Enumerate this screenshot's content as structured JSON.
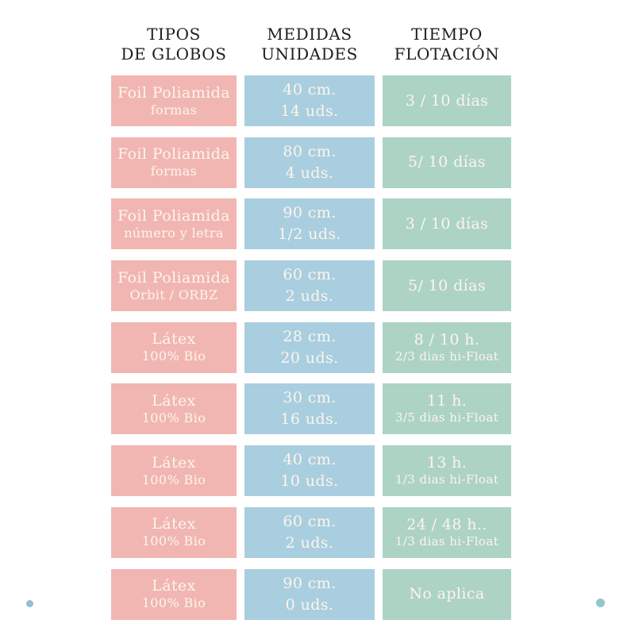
{
  "colors": {
    "type": "#f1b6b2",
    "measure": "#a9cee0",
    "float": "#add3c5",
    "cell_text": "#fcf5eb",
    "header_text": "#1d1d1d",
    "dot_left": "#96bed8",
    "dot_right": "#90c7ca"
  },
  "headers": [
    {
      "line1": "TIPOS",
      "line2": "DE GLOBOS"
    },
    {
      "line1": "MEDIDAS",
      "line2": "UNIDADES"
    },
    {
      "line1": "TIEMPO",
      "line2": "FLOTACIÓN"
    }
  ],
  "rows": [
    {
      "type": {
        "l1": "Foil Poliamida",
        "l2": "formas"
      },
      "measure": {
        "l1": "40 cm.",
        "l2": "14 uds."
      },
      "float": {
        "l1": "3 / 10 días",
        "l2": ""
      }
    },
    {
      "type": {
        "l1": "Foil Poliamida",
        "l2": "formas"
      },
      "measure": {
        "l1": "80 cm.",
        "l2": "4 uds."
      },
      "float": {
        "l1": "5/ 10 días",
        "l2": ""
      }
    },
    {
      "type": {
        "l1": "Foil Poliamida",
        "l2": "número y letra"
      },
      "measure": {
        "l1": "90 cm.",
        "l2": "1/2 uds."
      },
      "float": {
        "l1": "3 / 10 días",
        "l2": ""
      }
    },
    {
      "type": {
        "l1": "Foil Poliamida",
        "l2": "Orbit / ORBZ"
      },
      "measure": {
        "l1": "60 cm.",
        "l2": "2 uds."
      },
      "float": {
        "l1": "5/ 10 días",
        "l2": ""
      }
    },
    {
      "type": {
        "l1": "Látex",
        "l2": "100% Bio"
      },
      "measure": {
        "l1": "28 cm.",
        "l2": "20 uds."
      },
      "float": {
        "l1": "8 / 10 h.",
        "l2": "2/3 dias hi-Float"
      }
    },
    {
      "type": {
        "l1": "Látex",
        "l2": "100% Bio"
      },
      "measure": {
        "l1": "30 cm.",
        "l2": "16 uds."
      },
      "float": {
        "l1": "11 h.",
        "l2": "3/5 dias hi-Float"
      }
    },
    {
      "type": {
        "l1": "Látex",
        "l2": "100% Bio"
      },
      "measure": {
        "l1": "40 cm.",
        "l2": "10 uds."
      },
      "float": {
        "l1": "13 h.",
        "l2": "1/3 dias hi-Float"
      }
    },
    {
      "type": {
        "l1": "Látex",
        "l2": "100% Bio"
      },
      "measure": {
        "l1": "60 cm.",
        "l2": "2 uds."
      },
      "float": {
        "l1": "24 / 48 h..",
        "l2": "1/3 dias hi-Float"
      }
    },
    {
      "type": {
        "l1": "Látex",
        "l2": "100% Bio"
      },
      "measure": {
        "l1": "90 cm.",
        "l2": "0 uds."
      },
      "float": {
        "l1": "No aplica",
        "l2": ""
      }
    }
  ],
  "chart_data": {
    "type": "table",
    "title": "",
    "columns": [
      "TIPOS DE GLOBOS",
      "MEDIDAS UNIDADES",
      "TIEMPO FLOTACIÓN"
    ],
    "rows": [
      [
        "Foil Poliamida formas",
        "40 cm. 14 uds.",
        "3 / 10 días"
      ],
      [
        "Foil Poliamida formas",
        "80 cm. 4 uds.",
        "5/ 10 días"
      ],
      [
        "Foil Poliamida número y letra",
        "90 cm. 1/2 uds.",
        "3 / 10 días"
      ],
      [
        "Foil Poliamida Orbit / ORBZ",
        "60 cm. 2 uds.",
        "5/ 10 días"
      ],
      [
        "Látex 100% Bio",
        "28 cm. 20 uds.",
        "8 / 10 h. 2/3 dias hi-Float"
      ],
      [
        "Látex 100% Bio",
        "30 cm. 16 uds.",
        "11 h. 3/5 dias hi-Float"
      ],
      [
        "Látex 100% Bio",
        "40 cm. 10 uds.",
        "13 h. 1/3 dias hi-Float"
      ],
      [
        "Látex 100% Bio",
        "60 cm. 2 uds.",
        "24 / 48 h.. 1/3 dias hi-Float"
      ],
      [
        "Látex 100% Bio",
        "90 cm. 0 uds.",
        "No aplica"
      ]
    ],
    "layout_hints": {
      "column_colors": [
        "#f1b6b2",
        "#a9cee0",
        "#add3c5"
      ],
      "grid": false,
      "legend": "none"
    }
  }
}
